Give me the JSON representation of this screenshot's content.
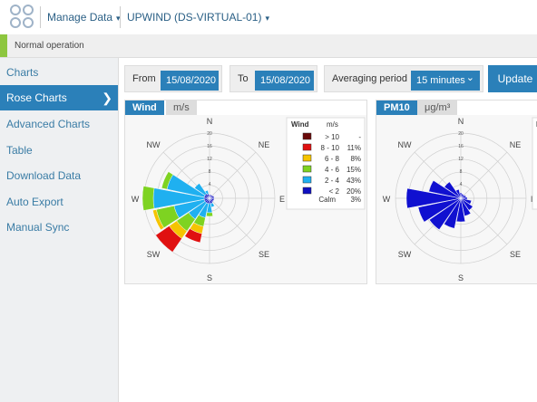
{
  "header": {
    "manage_label": "Manage Data",
    "device_label": "UPWIND (DS-VIRTUAL-01)",
    "chevron": "▾"
  },
  "status": {
    "text": "Normal operation",
    "color": "#8dc63f"
  },
  "sidebar": {
    "items": [
      {
        "label": "Charts"
      },
      {
        "label": "Rose Charts",
        "active": true
      },
      {
        "label": "Advanced Charts"
      },
      {
        "label": "Table"
      },
      {
        "label": "Download Data"
      },
      {
        "label": "Auto Export"
      },
      {
        "label": "Manual Sync"
      }
    ],
    "active_arrow": "❯"
  },
  "controls": {
    "from_label": "From",
    "from_value": "15/08/2020",
    "to_label": "To",
    "to_value": "15/08/2020",
    "avg_label": "Averaging period",
    "avg_value": "15 minutes",
    "avg_chevron": "⌄",
    "update_label": "Update"
  },
  "wind_panel": {
    "tab": "Wind",
    "unit_tab": "m/s",
    "directions": [
      "N",
      "NE",
      "E",
      "SE",
      "S",
      "SW",
      "W",
      "NW"
    ],
    "rings": [
      "20",
      "16",
      "12",
      "8",
      "4"
    ],
    "legend": {
      "title": "Wind",
      "unit": "m/s",
      "rows": [
        {
          "range": "> 10",
          "pct": "-",
          "color": "#6b0a0a"
        },
        {
          "range": "8 - 10",
          "pct": "11%",
          "color": "#e01010"
        },
        {
          "range": "6 - 8",
          "pct": "8%",
          "color": "#f5c400"
        },
        {
          "range": "4 - 6",
          "pct": "15%",
          "color": "#7ed321"
        },
        {
          "range": "2 - 4",
          "pct": "43%",
          "color": "#1fb0f0"
        },
        {
          "range": "< 2",
          "pct": "20%",
          "color": "#1010c0"
        }
      ],
      "calm_label": "Calm",
      "calm_pct": "3%"
    }
  },
  "pm_panel": {
    "tab": "PM10",
    "unit_tab": "μg/m³",
    "directions": [
      "N",
      "NE",
      "E",
      "SE",
      "S",
      "SW",
      "W",
      "NW"
    ],
    "rings": [
      "20",
      "16",
      "12",
      "8",
      "4"
    ],
    "bar_color": "#1010d0",
    "legend_cut_text": "P"
  }
}
